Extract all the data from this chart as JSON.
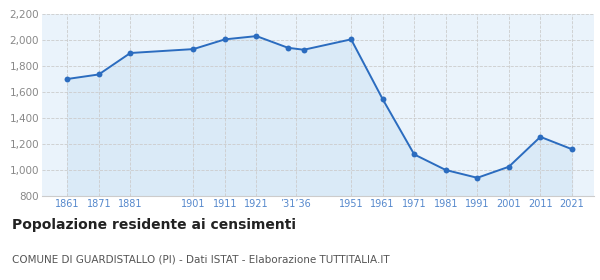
{
  "years": [
    1861,
    1871,
    1881,
    1901,
    1911,
    1921,
    1931,
    1936,
    1951,
    1961,
    1971,
    1981,
    1991,
    2001,
    2011,
    2021
  ],
  "population": [
    1700,
    1735,
    1900,
    1930,
    2005,
    2030,
    1940,
    1925,
    2005,
    1545,
    1120,
    1000,
    940,
    1025,
    1255,
    1160
  ],
  "xtick_positions": [
    1861,
    1871,
    1881,
    1901,
    1911,
    1921,
    1933.5,
    1951,
    1961,
    1971,
    1981,
    1991,
    2001,
    2011,
    2021
  ],
  "xtick_labels": [
    "1861",
    "1871",
    "1881",
    "1901",
    "1911",
    "1921",
    "’31’36",
    "1951",
    "1961",
    "1971",
    "1981",
    "1991",
    "2001",
    "2011",
    "2021"
  ],
  "ylim": [
    800,
    2200
  ],
  "yticks": [
    800,
    1000,
    1200,
    1400,
    1600,
    1800,
    2000,
    2200
  ],
  "xlim_left": 1853,
  "xlim_right": 2028,
  "line_color": "#2B6CBF",
  "fill_color": "#daeaf7",
  "marker_color": "#2B6CBF",
  "grid_color": "#cccccc",
  "background_color": "#eaf3fb",
  "title": "Popolazione residente ai censimenti",
  "subtitle": "COMUNE DI GUARDISTALLO (PI) - Dati ISTAT - Elaborazione TUTTITALIA.IT",
  "tick_label_color": "#5588cc",
  "ytick_label_color": "#888888",
  "title_fontsize": 10,
  "subtitle_fontsize": 7.5,
  "tick_fontsize": 7,
  "ytick_fontsize": 7.5
}
